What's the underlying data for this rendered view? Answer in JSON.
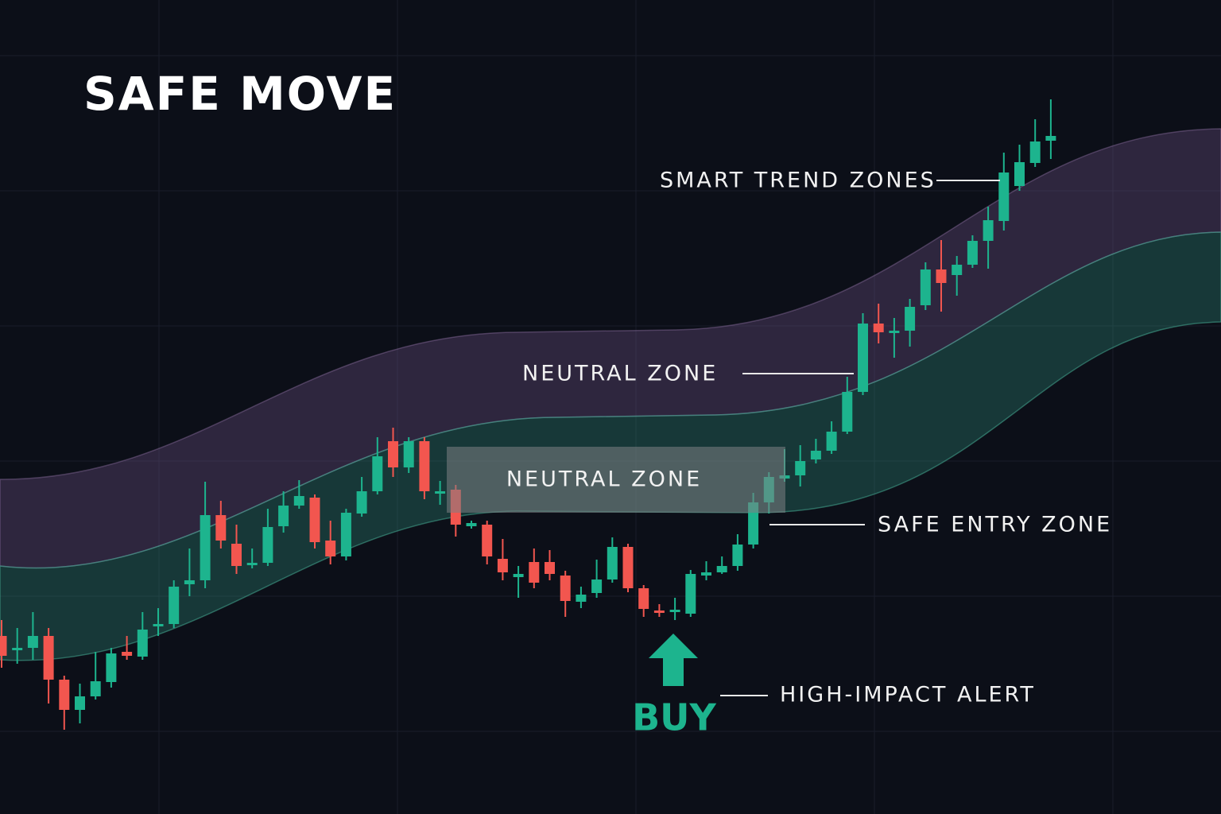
{
  "chart_data": {
    "type": "candlestick",
    "title": "SAFE MOVE",
    "ylim": [
      0,
      1024
    ],
    "up_color": "#1db48e",
    "down_color": "#f2564f",
    "open": [
      224,
      206,
      209,
      224,
      169,
      131,
      148,
      166,
      204,
      198,
      236,
      239,
      289,
      294,
      376,
      340,
      313,
      316,
      362,
      388,
      398,
      344,
      324,
      378,
      406,
      469,
      436,
      469,
      404,
      408,
      362,
      364,
      321,
      298,
      317,
      317,
      300,
      267,
      278,
      295,
      336,
      284,
      256,
      254,
      252,
      300,
      304,
      312,
      339,
      392,
      422,
      426,
      446,
      457,
      481,
      531,
      617,
      606,
      608,
      640,
      685,
      678,
      691,
      721,
      746,
      790,
      819,
      847
    ],
    "high": [
      244,
      234,
      254,
      234,
      174,
      164,
      204,
      209,
      224,
      254,
      259,
      294,
      334,
      418,
      394,
      364,
      334,
      384,
      406,
      420,
      402,
      369,
      384,
      424,
      474,
      486,
      474,
      474,
      419,
      414,
      369,
      369,
      346,
      312,
      334,
      332,
      306,
      286,
      320,
      348,
      340,
      288,
      264,
      272,
      307,
      318,
      324,
      352,
      404,
      430,
      459,
      464,
      472,
      494,
      550,
      630,
      642,
      624,
      648,
      694,
      722,
      702,
      728,
      764,
      832,
      842,
      874,
      899
    ],
    "low": [
      184,
      189,
      194,
      139,
      106,
      114,
      144,
      159,
      194,
      194,
      224,
      234,
      274,
      284,
      334,
      302,
      309,
      312,
      354,
      384,
      334,
      314,
      319,
      374,
      402,
      424,
      429,
      396,
      389,
      349,
      359,
      314,
      294,
      272,
      284,
      294,
      248,
      259,
      272,
      291,
      279,
      248,
      248,
      244,
      248,
      294,
      302,
      306,
      334,
      378,
      418,
      412,
      441,
      453,
      478,
      527,
      592,
      574,
      588,
      634,
      632,
      652,
      687,
      686,
      734,
      784,
      814,
      824
    ],
    "close": [
      199,
      209,
      224,
      169,
      131,
      148,
      167,
      202,
      199,
      232,
      239,
      286,
      294,
      376,
      344,
      312,
      316,
      361,
      388,
      400,
      342,
      324,
      379,
      406,
      450,
      436,
      469,
      406,
      406,
      364,
      366,
      324,
      304,
      302,
      291,
      302,
      268,
      276,
      295,
      336,
      284,
      258,
      253,
      257,
      302,
      304,
      312,
      339,
      392,
      424,
      426,
      444,
      457,
      481,
      531,
      617,
      606,
      608,
      638,
      685,
      668,
      691,
      721,
      747,
      807,
      820,
      846,
      853
    ],
    "annotations": [
      "SMART TREND ZONES",
      "NEUTRAL ZONE",
      "NEUTRAL ZONE",
      "SAFE ENTRY ZONE",
      "HIGH-IMPACT ALERT",
      "BUY"
    ]
  }
}
